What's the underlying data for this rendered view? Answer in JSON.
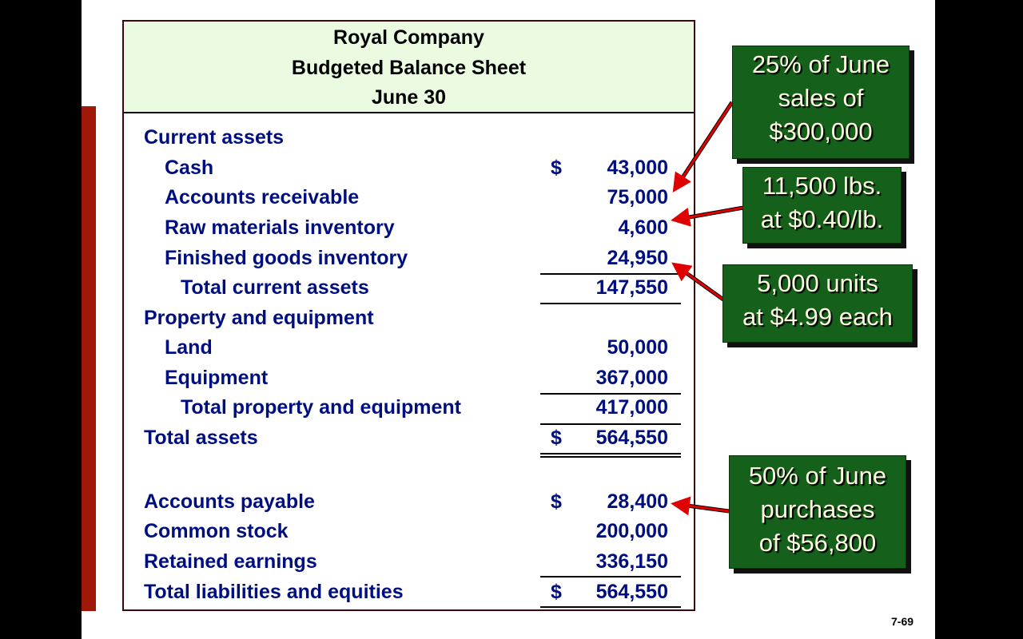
{
  "header": {
    "company": "Royal Company",
    "title": "Budgeted Balance Sheet",
    "date": "June 30"
  },
  "rows": [
    {
      "label": "Current assets",
      "indent": 0,
      "dollar": "",
      "value": ""
    },
    {
      "label": "Cash",
      "indent": 1,
      "dollar": "$",
      "value": "43,000"
    },
    {
      "label": "Accounts receivable",
      "indent": 1,
      "dollar": "",
      "value": "75,000"
    },
    {
      "label": "Raw materials inventory",
      "indent": 1,
      "dollar": "",
      "value": "4,600"
    },
    {
      "label": "Finished goods inventory",
      "indent": 1,
      "dollar": "",
      "value": "24,950"
    },
    {
      "label": "Total current assets",
      "indent": 2,
      "dollar": "",
      "value": "147,550"
    },
    {
      "label": "Property and equipment",
      "indent": 0,
      "dollar": "",
      "value": ""
    },
    {
      "label": "Land",
      "indent": 1,
      "dollar": "",
      "value": "50,000"
    },
    {
      "label": "Equipment",
      "indent": 1,
      "dollar": "",
      "value": "367,000"
    },
    {
      "label": "Total property and equipment",
      "indent": 2,
      "dollar": "",
      "value": "417,000"
    },
    {
      "label": "Total assets",
      "indent": 0,
      "dollar": "$",
      "value": "564,550"
    },
    {
      "label": "Accounts payable",
      "indent": 0,
      "dollar": "$",
      "value": "28,400"
    },
    {
      "label": "Common stock",
      "indent": 0,
      "dollar": "",
      "value": "200,000"
    },
    {
      "label": "Retained earnings",
      "indent": 0,
      "dollar": "",
      "value": "336,150"
    },
    {
      "label": "Total liabilities and equities",
      "indent": 0,
      "dollar": "$",
      "value": "564,550"
    }
  ],
  "callouts": [
    {
      "lines": [
        "25% of June",
        "sales of",
        "$300,000"
      ]
    },
    {
      "lines": [
        "11,500 lbs.",
        "at $0.40/lb."
      ]
    },
    {
      "lines": [
        "5,000 units",
        "at $4.99 each"
      ]
    },
    {
      "lines": [
        "50% of June",
        "purchases",
        "of $56,800"
      ]
    }
  ],
  "page_number": "7-69",
  "colors": {
    "text": "#000f80",
    "header_bg": "#ebfbe2",
    "callout_bg": "#15601a",
    "arrow": "#e00000",
    "bar": "#a01808"
  }
}
